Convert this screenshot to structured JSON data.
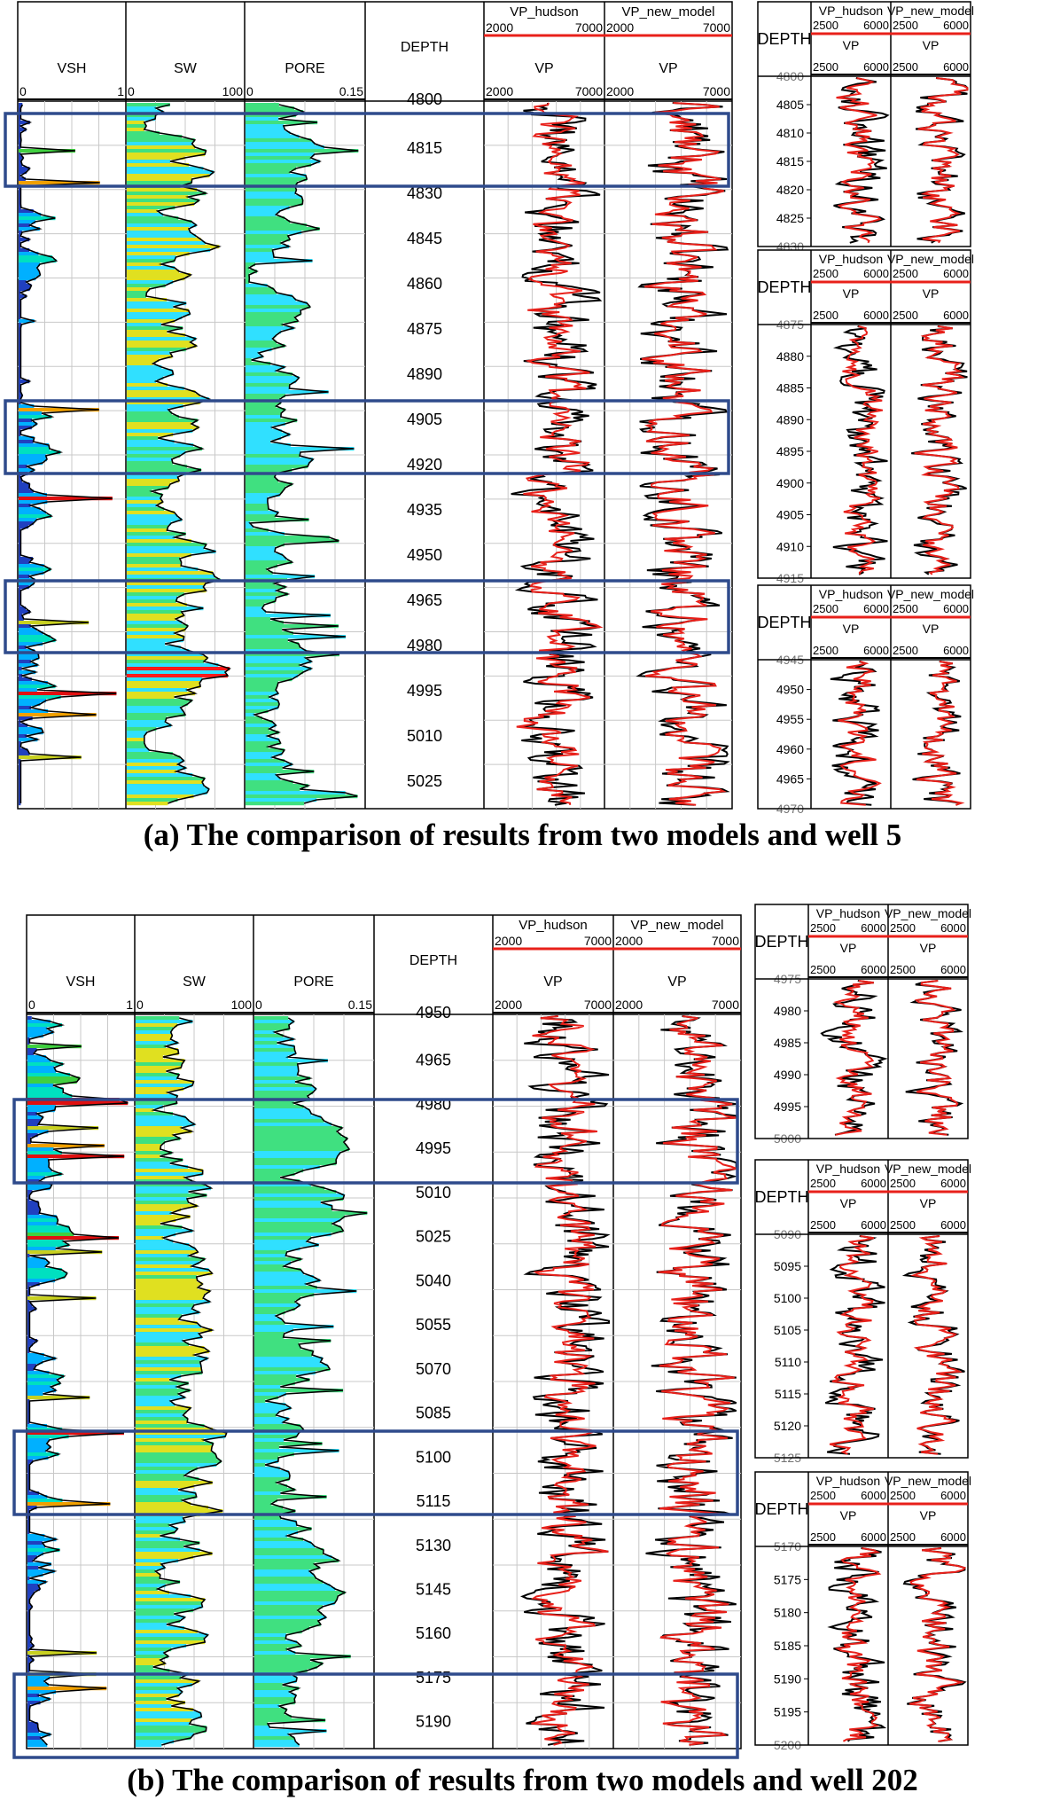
{
  "panel_a": {
    "caption": "(a) The comparison of results from two models and well 5",
    "main": {
      "tracks": [
        {
          "label": "VSH",
          "scale_min": "0",
          "scale_max": "1"
        },
        {
          "label": "SW",
          "scale_min": "0",
          "scale_max": "100"
        },
        {
          "label": "PORE",
          "scale_min": "0",
          "scale_max": "0.15"
        }
      ],
      "depth_title": "DEPTH",
      "depth_labels": [
        "4800",
        "4815",
        "4830",
        "4845",
        "4860",
        "4875",
        "4890",
        "4905",
        "4920",
        "4935",
        "4950",
        "4965",
        "4980",
        "4995",
        "5010",
        "5025"
      ],
      "vp_tracks": [
        {
          "curve_name": "VP_hudson",
          "curve_min": "2000",
          "curve_max": "7000",
          "axis_label": "VP",
          "axis_min": "2000",
          "axis_max": "7000"
        },
        {
          "curve_name": "VP_new_model",
          "curve_min": "2000",
          "curve_max": "7000",
          "axis_label": "VP",
          "axis_min": "2000",
          "axis_max": "7000"
        }
      ]
    },
    "zooms": [
      {
        "depth_title": "DEPTH",
        "curve_names": [
          "VP_hudson",
          "VP_new_model"
        ],
        "curve_min": "2500",
        "curve_max": "6000",
        "axis_label": "VP",
        "axis_min": "2500",
        "axis_max": "6000",
        "depth_labels": [
          "4800",
          "4805",
          "4810",
          "4815",
          "4820",
          "4825",
          "4830"
        ]
      },
      {
        "depth_title": "DEPTH",
        "curve_names": [
          "VP_hudson",
          "VP_new_model"
        ],
        "curve_min": "2500",
        "curve_max": "6000",
        "axis_label": "VP",
        "axis_min": "2500",
        "axis_max": "6000",
        "depth_labels": [
          "4875",
          "4880",
          "4885",
          "4890",
          "4895",
          "4900",
          "4905",
          "4910",
          "4915"
        ]
      },
      {
        "depth_title": "DEPTH",
        "curve_names": [
          "VP_hudson",
          "VP_new_model"
        ],
        "curve_min": "2500",
        "curve_max": "6000",
        "axis_label": "VP",
        "axis_min": "2500",
        "axis_max": "6000",
        "depth_labels": [
          "4945",
          "4950",
          "4955",
          "4960",
          "4965",
          "4970"
        ]
      }
    ]
  },
  "panel_b": {
    "caption": "(b) The comparison of results from two models and well 202",
    "main": {
      "tracks": [
        {
          "label": "VSH",
          "scale_min": "0",
          "scale_max": "1"
        },
        {
          "label": "SW",
          "scale_min": "0",
          "scale_max": "100"
        },
        {
          "label": "PORE",
          "scale_min": "0",
          "scale_max": "0.15"
        }
      ],
      "depth_title": "DEPTH",
      "depth_labels": [
        "4950",
        "4965",
        "4980",
        "4995",
        "5010",
        "5025",
        "5040",
        "5055",
        "5070",
        "5085",
        "5100",
        "5115",
        "5130",
        "5145",
        "5160",
        "5175",
        "5190"
      ],
      "vp_tracks": [
        {
          "curve_name": "VP_hudson",
          "curve_min": "2000",
          "curve_max": "7000",
          "axis_label": "VP",
          "axis_min": "2000",
          "axis_max": "7000"
        },
        {
          "curve_name": "VP_new_model",
          "curve_min": "2000",
          "curve_max": "7000",
          "axis_label": "VP",
          "axis_min": "2000",
          "axis_max": "7000"
        }
      ]
    },
    "zooms": [
      {
        "depth_title": "DEPTH",
        "curve_names": [
          "VP_hudson",
          "VP_new_model"
        ],
        "curve_min": "2500",
        "curve_max": "6000",
        "axis_label": "VP",
        "axis_min": "2500",
        "axis_max": "6000",
        "depth_labels": [
          "4975",
          "4980",
          "4985",
          "4990",
          "4995",
          "5000"
        ]
      },
      {
        "depth_title": "DEPTH",
        "curve_names": [
          "VP_hudson",
          "VP_new_model"
        ],
        "curve_min": "2500",
        "curve_max": "6000",
        "axis_label": "VP",
        "axis_min": "2500",
        "axis_max": "6000",
        "depth_labels": [
          "5090",
          "5095",
          "5100",
          "5105",
          "5110",
          "5115",
          "5120",
          "5125"
        ]
      },
      {
        "depth_title": "DEPTH",
        "curve_names": [
          "VP_hudson",
          "VP_new_model"
        ],
        "curve_min": "2500",
        "curve_max": "6000",
        "axis_label": "VP",
        "axis_min": "2500",
        "axis_max": "6000",
        "depth_labels": [
          "5170",
          "5175",
          "5180",
          "5185",
          "5190",
          "5195",
          "5200"
        ]
      }
    ]
  },
  "colors": {
    "hudson_curve": "#e8201a",
    "measured_curve": "#000000",
    "highlight_box": "#2f4b8c",
    "grid": "#c8c8c8",
    "vsh_fill": [
      "#2040c0",
      "#00b0ff",
      "#00e0c0",
      "#40d040",
      "#c8d020",
      "#f0a000",
      "#e01010"
    ],
    "sw_fill": [
      "#ff1a1a",
      "#30e0ff",
      "#40e080",
      "#e0e020"
    ],
    "pore_fill": [
      "#30e0ff",
      "#40e080"
    ]
  },
  "chart_data": [
    {
      "type": "line",
      "title": "(a) The comparison of results from two models and well 5",
      "ylabel": "DEPTH",
      "ylim": [
        4800,
        5035
      ],
      "series": [
        {
          "name": "VP_hudson",
          "xlim": [
            2000,
            7000
          ]
        },
        {
          "name": "VP_new_model",
          "xlim": [
            2000,
            7000
          ]
        },
        {
          "name": "VP",
          "xlim": [
            2000,
            7000
          ]
        }
      ],
      "tracks": [
        {
          "name": "VSH",
          "xlim": [
            0,
            1
          ]
        },
        {
          "name": "SW",
          "xlim": [
            0,
            100
          ]
        },
        {
          "name": "PORE",
          "xlim": [
            0,
            0.15
          ]
        }
      ],
      "highlight_intervals": [
        [
          4803,
          4819
        ],
        [
          4899,
          4918
        ],
        [
          4960,
          4977
        ]
      ],
      "zoom_windows": [
        [
          4800,
          4830
        ],
        [
          4872,
          4916
        ],
        [
          4945,
          4971
        ]
      ]
    },
    {
      "type": "line",
      "title": "(b) The comparison of results from two models and well 202",
      "ylabel": "DEPTH",
      "ylim": [
        4950,
        5200
      ],
      "series": [
        {
          "name": "VP_hudson",
          "xlim": [
            2000,
            7000
          ]
        },
        {
          "name": "VP_new_model",
          "xlim": [
            2000,
            7000
          ]
        },
        {
          "name": "VP",
          "xlim": [
            2000,
            7000
          ]
        }
      ],
      "tracks": [
        {
          "name": "VSH",
          "xlim": [
            0,
            1
          ]
        },
        {
          "name": "SW",
          "xlim": [
            0,
            100
          ]
        },
        {
          "name": "PORE",
          "xlim": [
            0,
            0.15
          ]
        }
      ],
      "highlight_intervals": [
        [
          4982,
          5000
        ],
        [
          5095,
          5118
        ],
        [
          5172,
          5197
        ]
      ],
      "zoom_windows": [
        [
          4975,
          5000
        ],
        [
          5090,
          5125
        ],
        [
          5170,
          5200
        ]
      ]
    }
  ]
}
